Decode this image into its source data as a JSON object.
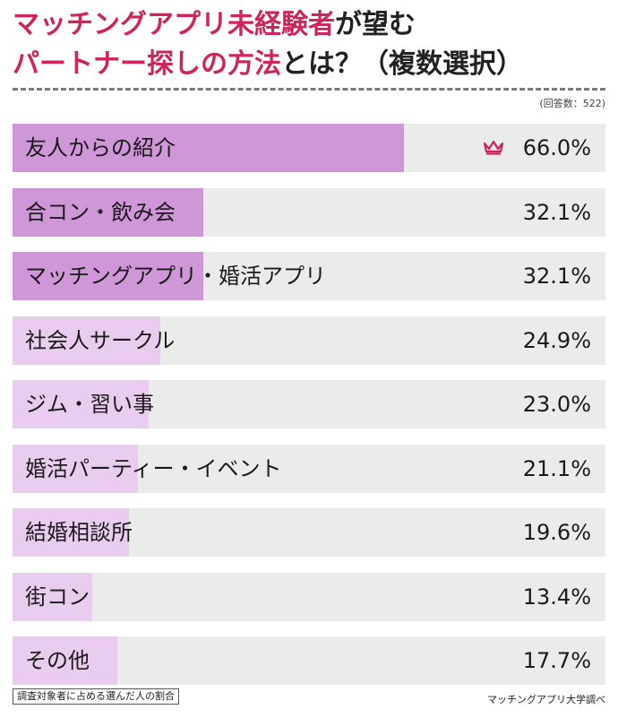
{
  "title": {
    "line1_highlight": "マッチングアプリ未経験者",
    "line1_rest": "が望む",
    "line2_highlight": "パートナー探しの方法",
    "line2_rest": "とは？（複数選択）"
  },
  "respondents_note": "(回答数：522)",
  "footnote": "調査対象者に占める選んだ人の割合",
  "source": "マッチングアプリ大学調べ",
  "colors": {
    "fill_strong": "#cf96d8",
    "fill_light": "#e9cdee",
    "track": "#ebebeb",
    "accent": "#d0245d"
  },
  "chart_data": {
    "type": "bar",
    "orientation": "horizontal",
    "title": "マッチングアプリ未経験者が望むパートナー探しの方法とは？（複数選択）",
    "xlim": [
      0,
      100
    ],
    "categories": [
      "友人からの紹介",
      "合コン・飲み会",
      "マッチングアプリ・婚活アプリ",
      "社会人サークル",
      "ジム・習い事",
      "婚活パーティー・イベント",
      "結婚相談所",
      "街コン",
      "その他"
    ],
    "values": [
      66.0,
      32.1,
      32.1,
      24.9,
      23.0,
      21.1,
      19.6,
      13.4,
      17.7
    ],
    "value_labels": [
      "66.0%",
      "32.1%",
      "32.1%",
      "24.9%",
      "23.0%",
      "21.1%",
      "19.6%",
      "13.4%",
      "17.7%"
    ],
    "highlighted": [
      true,
      true,
      true,
      false,
      false,
      false,
      false,
      false,
      false
    ],
    "top_icon": "crown-icon"
  }
}
